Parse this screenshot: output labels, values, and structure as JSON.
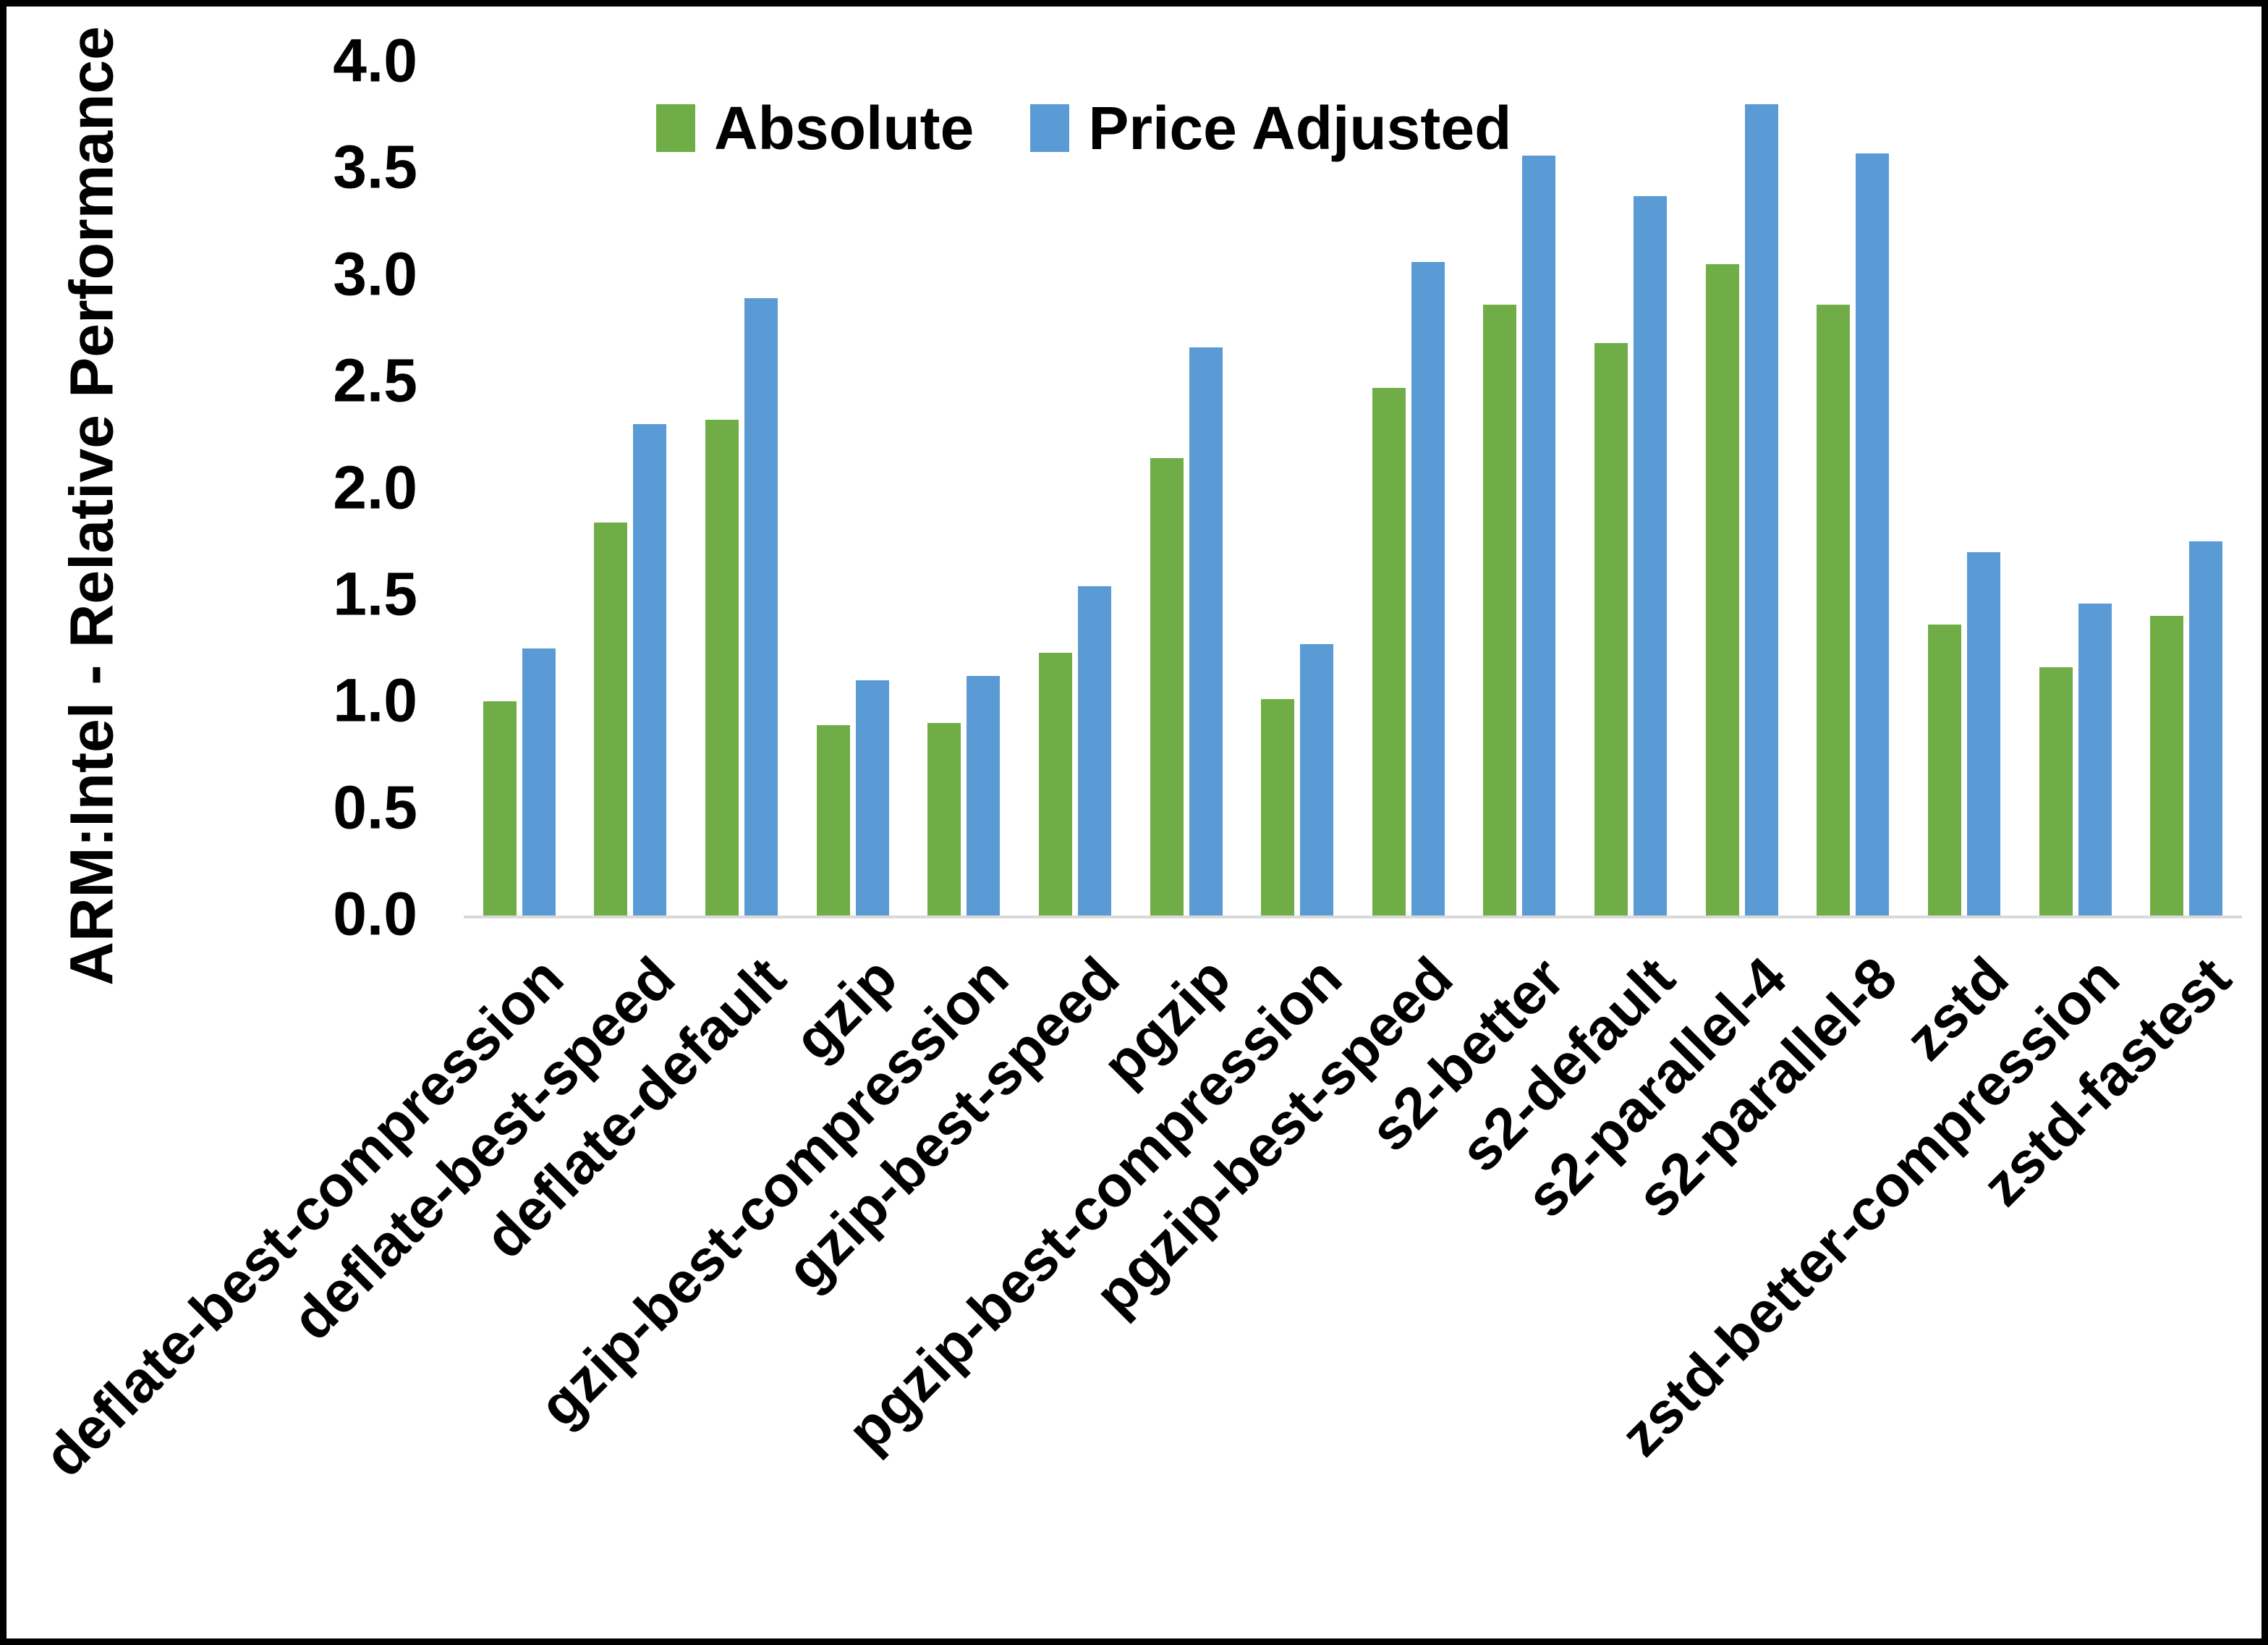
{
  "chart_data": {
    "type": "bar",
    "title": "",
    "ylabel": "ARM:Intel - Relative Performance",
    "xlabel": "",
    "ylim": [
      0.0,
      4.0
    ],
    "ytick_labels": [
      "0.0",
      "0.5",
      "1.0",
      "1.5",
      "2.0",
      "2.5",
      "3.0",
      "3.5",
      "4.0"
    ],
    "grid": "off",
    "legend_position": "top",
    "categories": [
      "deflate-best-compression",
      "deflate-best-speed",
      "deflate-default",
      "gzip",
      "gzip-best-compression",
      "gzip-best-speed",
      "pgzip",
      "pgzip-best-compression",
      "pgzip-best-speed",
      "s2-better",
      "s2-default",
      "s2-parallel-4",
      "s2-parallel-8",
      "zstd",
      "zstd-better-compression",
      "zstd-fastest"
    ],
    "series": [
      {
        "name": "Absolute",
        "color": "#70AD47",
        "values": [
          1.01,
          1.85,
          2.33,
          0.9,
          0.91,
          1.24,
          2.15,
          1.02,
          2.48,
          2.87,
          2.69,
          3.06,
          2.87,
          1.37,
          1.17,
          1.41
        ]
      },
      {
        "name": "Price Adjusted",
        "color": "#5B9BD5",
        "values": [
          1.26,
          2.31,
          2.9,
          1.11,
          1.13,
          1.55,
          2.67,
          1.28,
          3.07,
          3.57,
          3.38,
          3.81,
          3.58,
          1.71,
          1.47,
          1.76
        ]
      }
    ],
    "colors": {
      "axis_line": "#D9D9D9",
      "text": "#000000",
      "background": "#FFFFFF",
      "frame_border": "#000000"
    }
  }
}
